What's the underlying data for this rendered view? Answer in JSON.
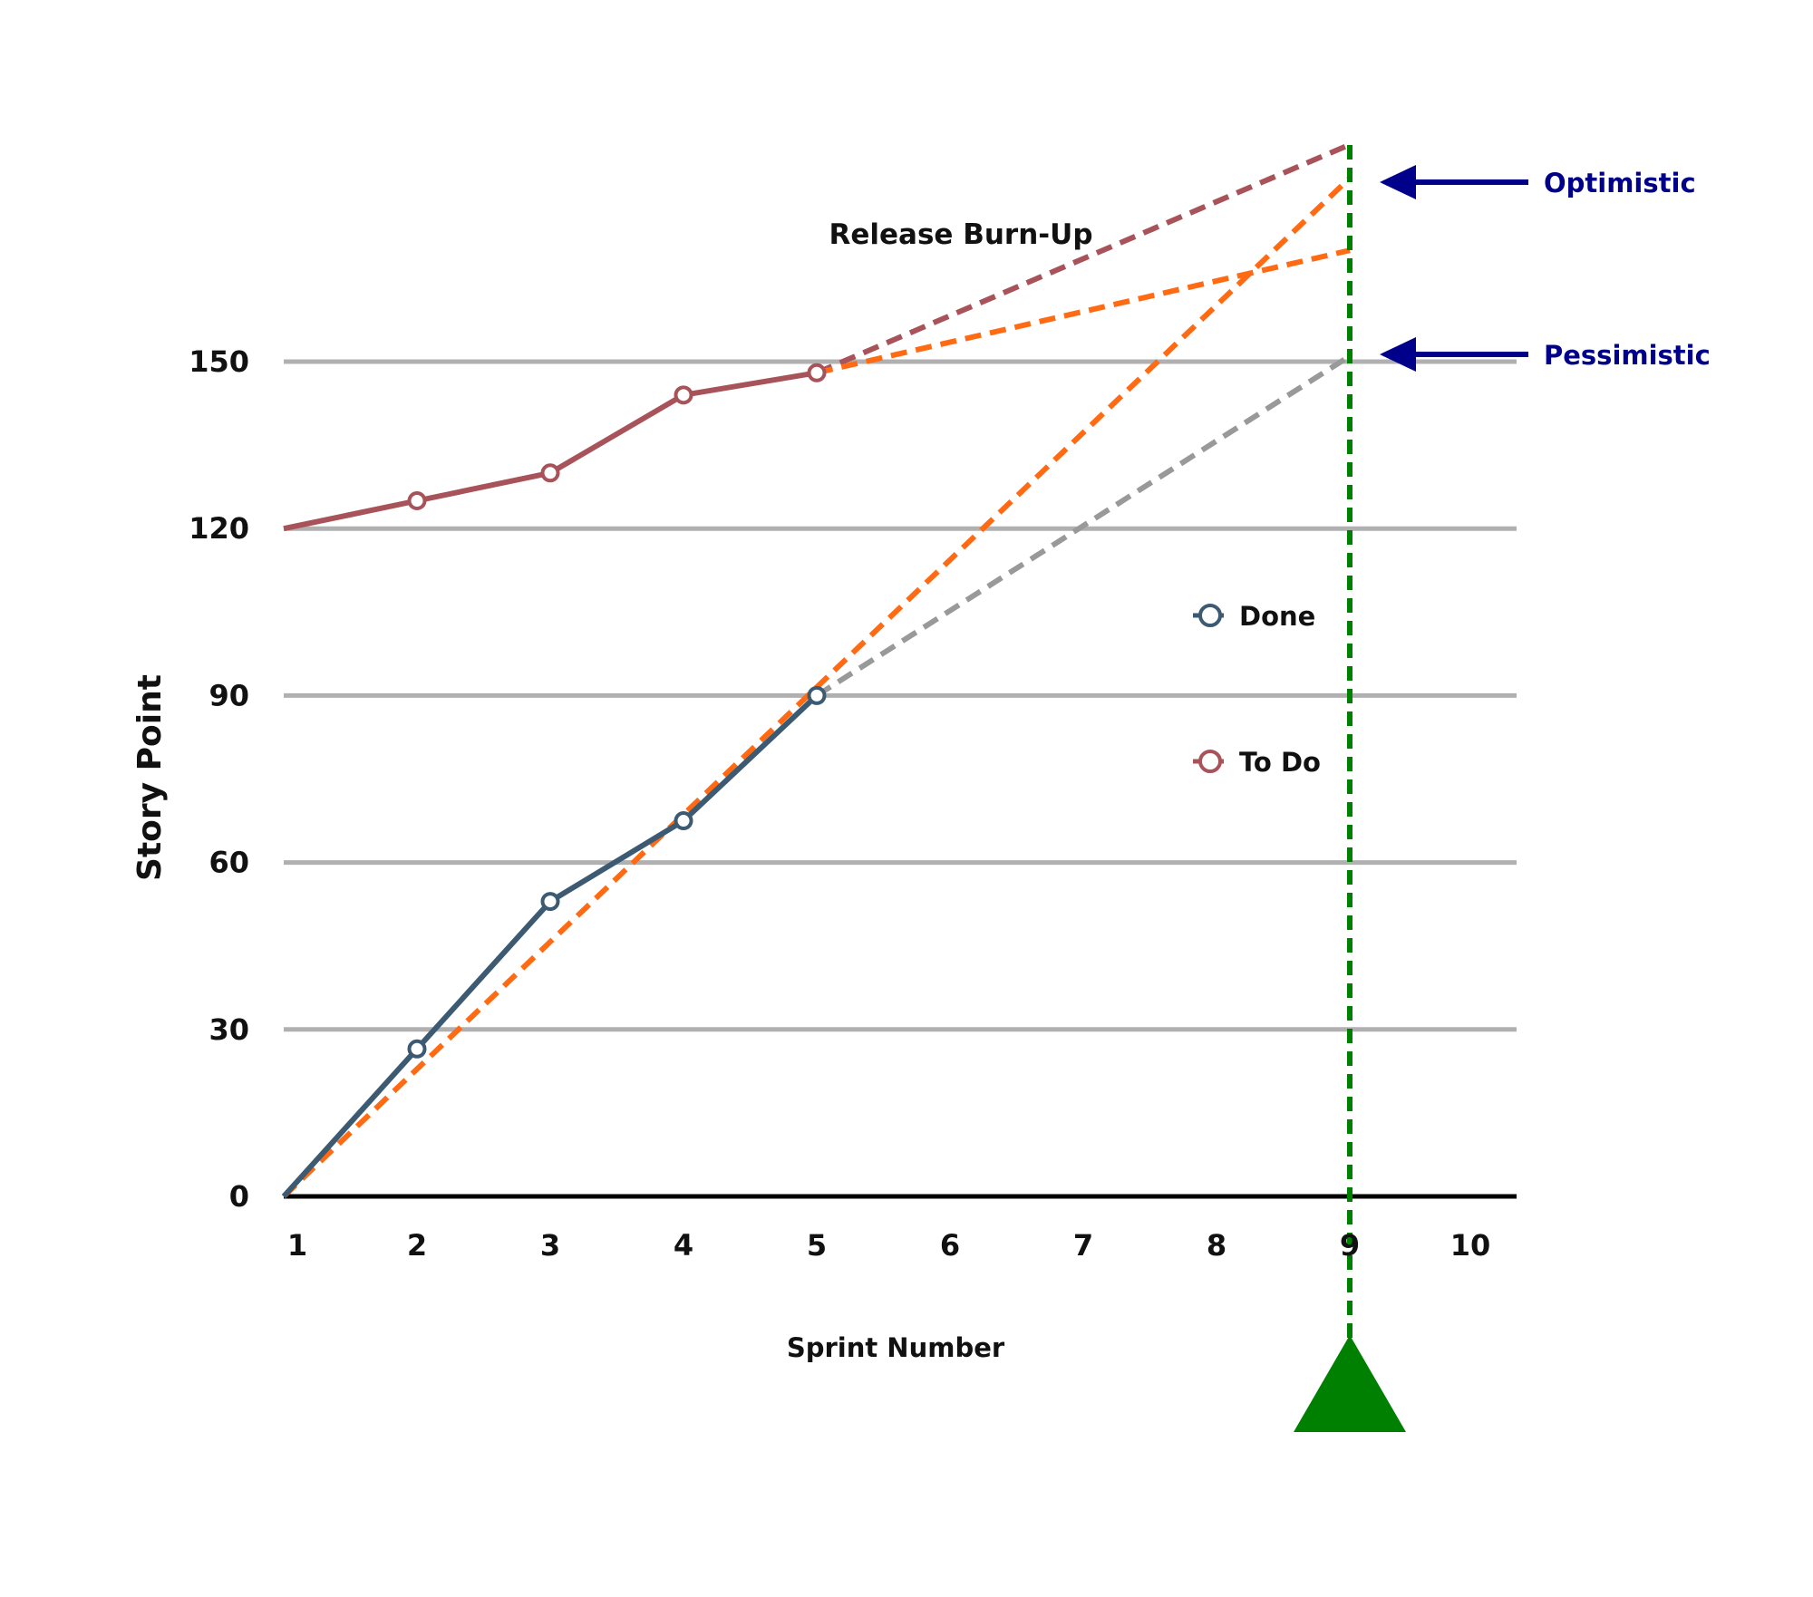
{
  "chart_data": {
    "type": "line",
    "title": "Release Burn-Up",
    "xlabel": "Sprint Number",
    "ylabel": "Story Point",
    "xticks": [
      1,
      2,
      3,
      4,
      5,
      6,
      7,
      8,
      9,
      10
    ],
    "yticks": [
      0,
      30,
      60,
      90,
      120,
      150
    ],
    "xlim": [
      1,
      10
    ],
    "ylim": [
      0,
      190
    ],
    "grid": "horizontal",
    "legend_position": "center-right",
    "series": [
      {
        "name": "Done",
        "color": "#3d5a73",
        "style": "solid",
        "markers": true,
        "x": [
          1,
          2,
          3,
          4,
          5
        ],
        "y": [
          0,
          26.5,
          53,
          67.5,
          90
        ]
      },
      {
        "name": "To Do",
        "color": "#a8525a",
        "style": "solid",
        "markers": true,
        "x": [
          1,
          2,
          3,
          4,
          5
        ],
        "y": [
          120,
          125,
          130,
          144,
          148
        ]
      }
    ],
    "projections": [
      {
        "color": "#a8525a",
        "style": "dashed",
        "x": [
          5,
          9
        ],
        "y": [
          148,
          189
        ]
      },
      {
        "color": "#ff6a13",
        "style": "dashed",
        "x": [
          5,
          9
        ],
        "y": [
          148,
          170
        ]
      },
      {
        "color": "#ff6a13",
        "style": "dashed",
        "x": [
          1,
          9
        ],
        "y": [
          0,
          183
        ]
      },
      {
        "color": "#999999",
        "style": "dashed",
        "x": [
          5,
          9
        ],
        "y": [
          90,
          151
        ]
      }
    ],
    "release_marker": {
      "x": 9,
      "color": "#008000",
      "style": "dashed"
    },
    "annotations": [
      {
        "text": "Optimistic",
        "y": 183,
        "color": "#00008b"
      },
      {
        "text": "Pessimistic",
        "y": 152,
        "color": "#00008b"
      }
    ]
  }
}
